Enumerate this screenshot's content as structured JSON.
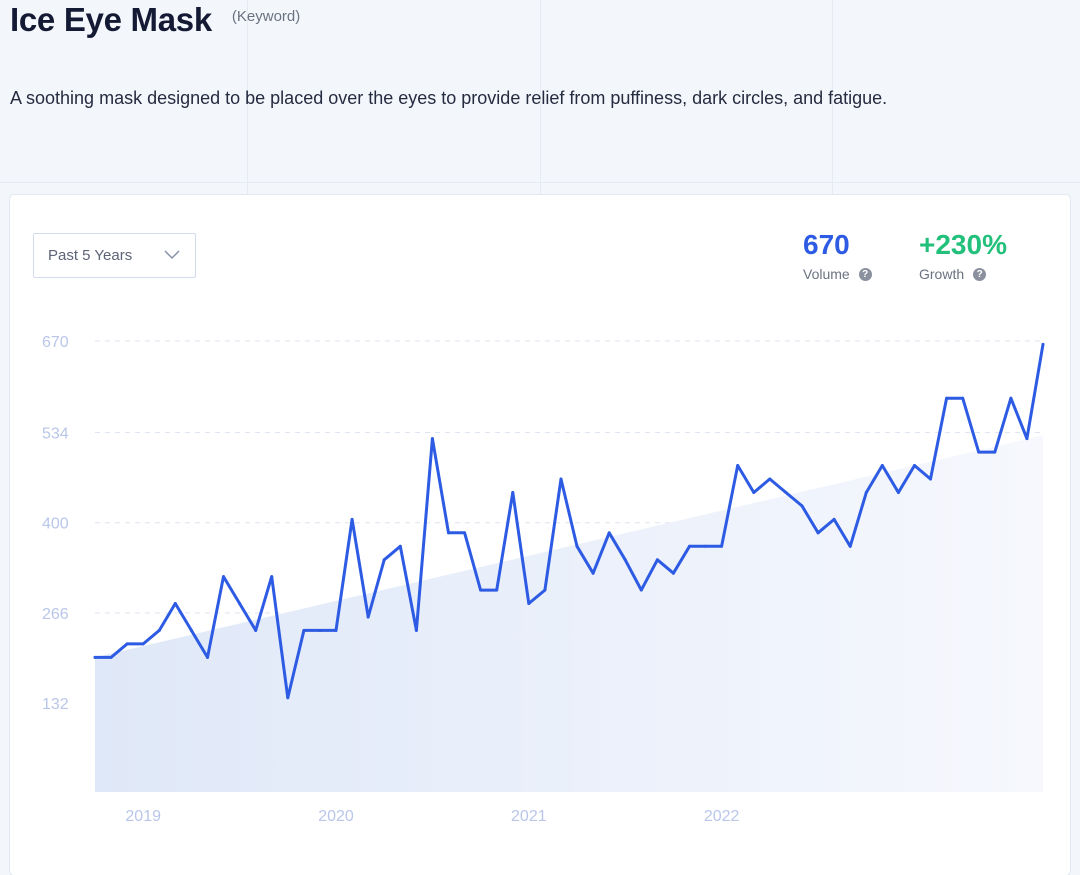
{
  "header": {
    "title": "Ice Eye Mask",
    "tag": "(Keyword)",
    "description": "A soothing mask designed to be placed over the eyes to provide relief from puffiness, dark circles, and fatigue."
  },
  "controls": {
    "range_label": "Past 5 Years",
    "range_icon": "chevron-down-icon"
  },
  "metrics": {
    "volume": {
      "value": "670",
      "label": "Volume",
      "color": "#2d5be3"
    },
    "growth": {
      "value": "+230%",
      "label": "Growth",
      "color": "#22c07a"
    },
    "help_icon": "?"
  },
  "chart_data": {
    "type": "line",
    "grid": true,
    "line_color": "#2d5be3",
    "yticks": [
      670,
      534,
      400,
      266,
      132
    ],
    "ylim": [
      0,
      670
    ],
    "xticks": [
      {
        "label": "2019",
        "x": 3
      },
      {
        "label": "2020",
        "x": 15
      },
      {
        "label": "2021",
        "x": 27
      },
      {
        "label": "2022",
        "x": 39
      }
    ],
    "series": [
      {
        "values": [
          200,
          200,
          220,
          220,
          240,
          280,
          240,
          200,
          320,
          280,
          240,
          320,
          140,
          240,
          240,
          240,
          405,
          260,
          345,
          365,
          240,
          525,
          385,
          385,
          300,
          300,
          445,
          280,
          300,
          465,
          365,
          325,
          385,
          345,
          300,
          345,
          325,
          365,
          365,
          365,
          485,
          445,
          465,
          445,
          425,
          385,
          405,
          365,
          445,
          485,
          445,
          485,
          465,
          585,
          585,
          505,
          505,
          585,
          525,
          665
        ]
      }
    ],
    "trend": [
      200,
      530
    ]
  }
}
